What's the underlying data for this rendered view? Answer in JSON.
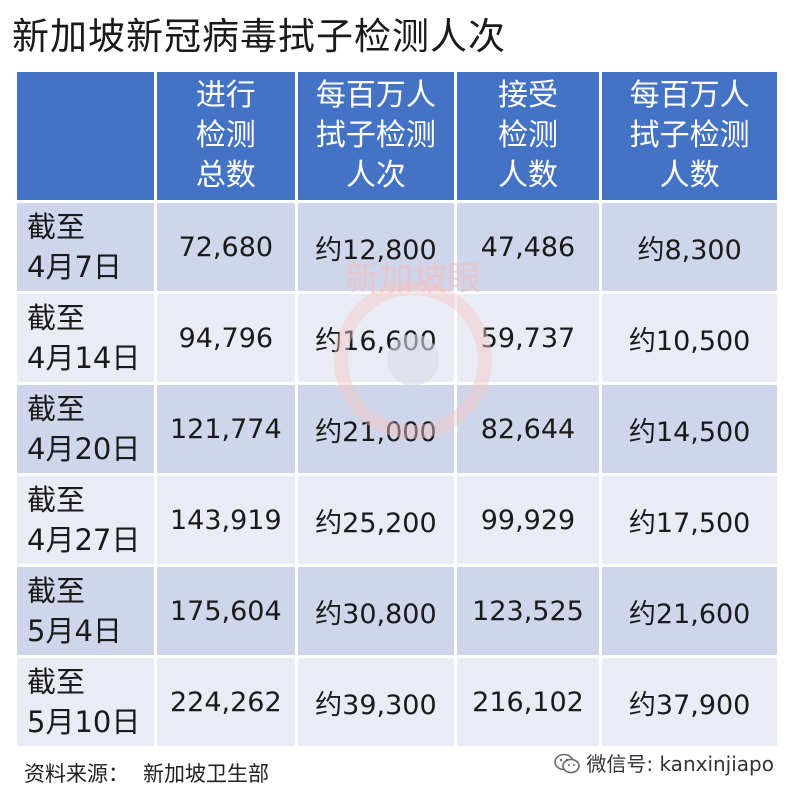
{
  "title": "新加坡新冠病毒拭子检测人次",
  "chart_data": {
    "type": "table",
    "columns": [
      "",
      "进行\n检测\n总数",
      "每百万人\n拭子检测\n人次",
      "接受\n检测\n人数",
      "每百万人\n拭子检测\n人数"
    ],
    "rows": [
      {
        "label": "截至\n4月7日",
        "values": [
          "72,680",
          "约12,800",
          "47,486",
          "约8,300"
        ]
      },
      {
        "label": "截至\n4月14日",
        "values": [
          "94,796",
          "约16,600",
          "59,737",
          "约10,500"
        ]
      },
      {
        "label": "截至\n4月20日",
        "values": [
          "121,774",
          "约21,000",
          "82,644",
          "约14,500"
        ]
      },
      {
        "label": "截至\n4月27日",
        "values": [
          "143,919",
          "约25,200",
          "99,929",
          "约17,500"
        ]
      },
      {
        "label": "截至\n5月4日",
        "values": [
          "175,604",
          "约30,800",
          "123,525",
          "约21,600"
        ]
      },
      {
        "label": "截至\n5月10日",
        "values": [
          "224,262",
          "约39,300",
          "216,102",
          "约37,900"
        ]
      }
    ]
  },
  "watermark": {
    "text": "新加坡眼"
  },
  "footer": {
    "source_label": "资料来源：",
    "source": "新加坡卫生部"
  },
  "wechat": {
    "text": "微信号: kanxinjiapo"
  },
  "colors": {
    "header": "#4472c4",
    "row_odd": "#cfd5ea",
    "row_even": "#e9ebf5"
  }
}
